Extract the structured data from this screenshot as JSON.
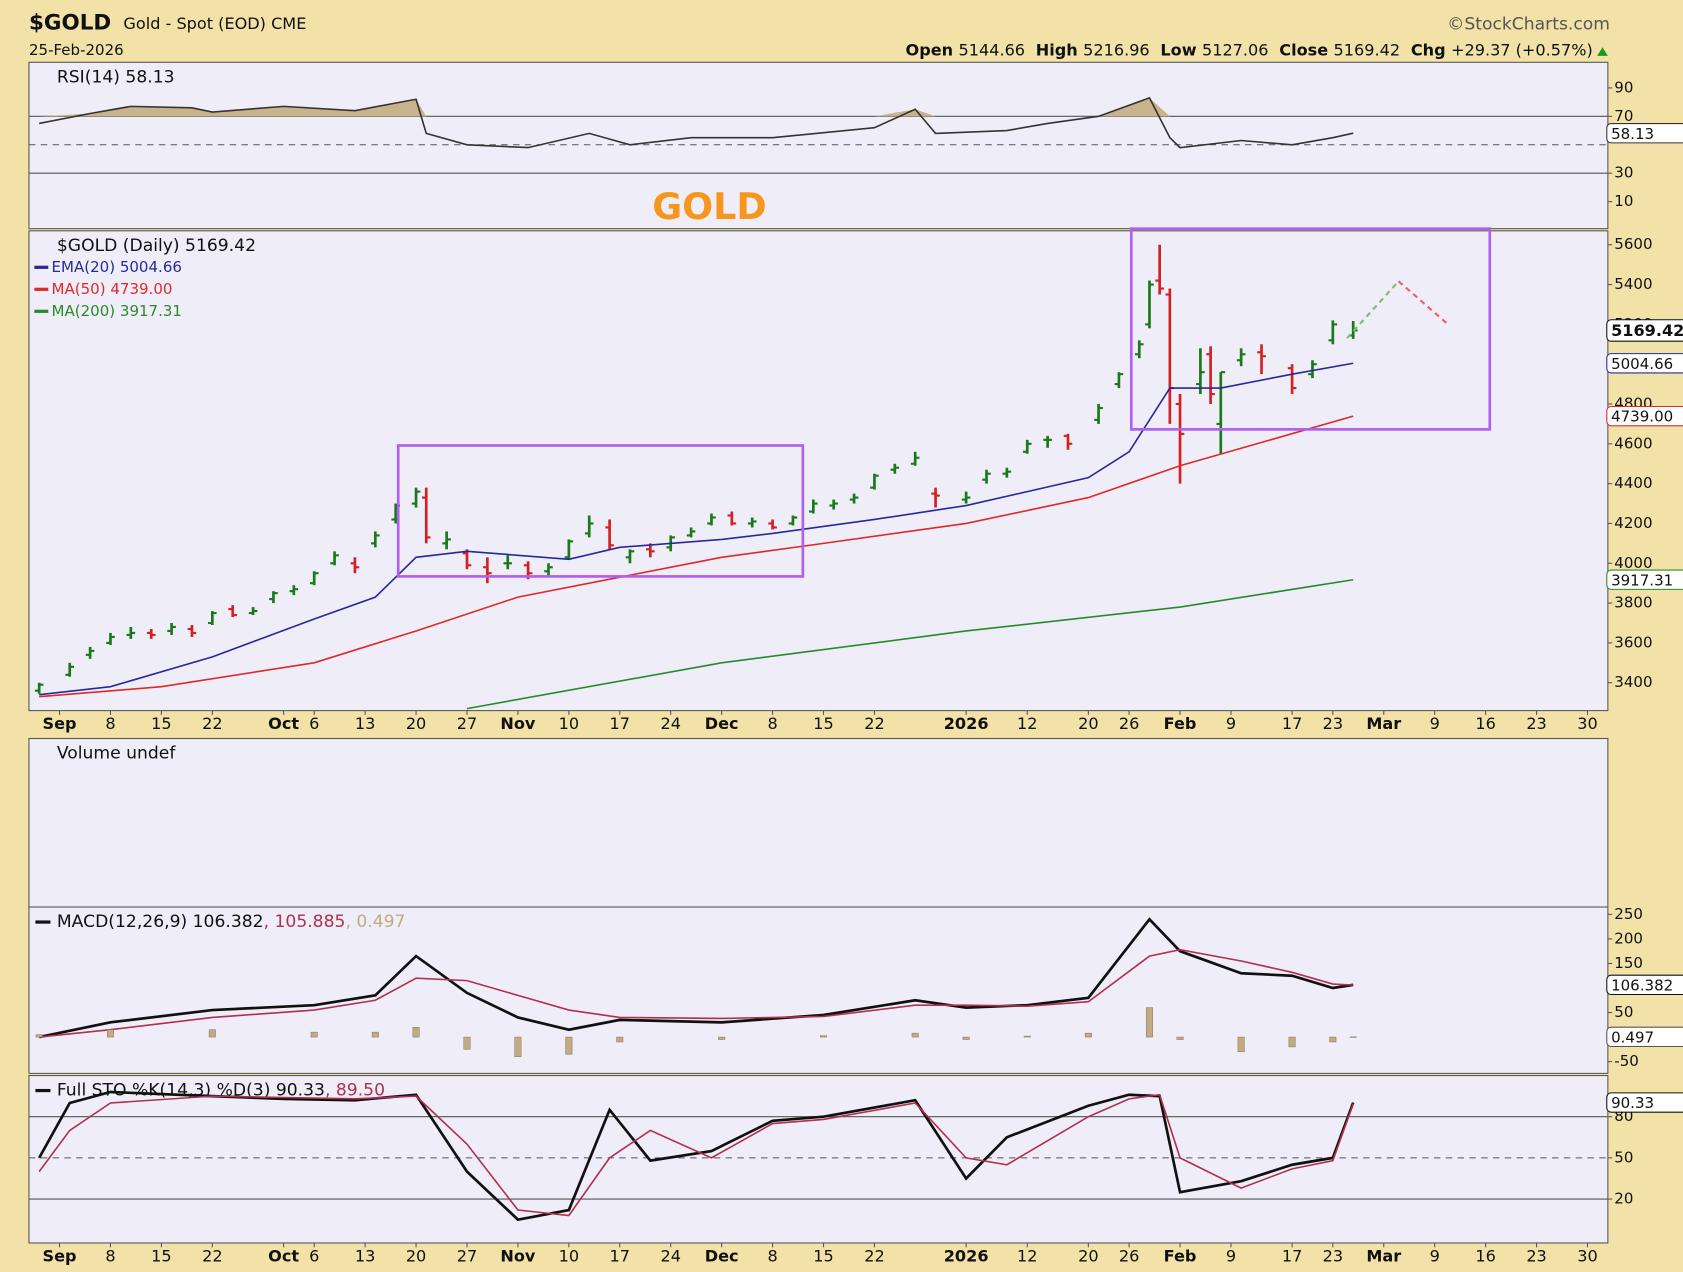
{
  "header": {
    "symbol": "$GOLD",
    "description": "Gold - Spot (EOD) CME",
    "date": "25-Feb-2026",
    "source": "©StockCharts.com",
    "quote": [
      [
        "Open",
        "5144.66"
      ],
      [
        "High",
        "5216.96"
      ],
      [
        "Low",
        "5127.06"
      ],
      [
        "Close",
        "5169.42"
      ],
      [
        "Chg",
        "+29.37 (+0.57%)"
      ]
    ]
  },
  "chart_data": [
    {
      "type": "line",
      "legend": "RSI(14) 58.13",
      "annotation": "GOLD",
      "xlim": [
        "2025-08-27",
        "2026-04-01"
      ],
      "ylim": [
        -9,
        108
      ],
      "yticks": [
        10,
        30,
        70,
        90
      ],
      "reference_lines": [
        30,
        50,
        70
      ],
      "dashed_line": 50,
      "fill_above": 70,
      "fill_color": "#c9b38c",
      "x": [
        "2025-08-28",
        "2025-09-04",
        "2025-09-10",
        "2025-09-18",
        "2025-09-22",
        "2025-10-01",
        "2025-10-10",
        "2025-10-20",
        "2025-10-21",
        "2025-10-27",
        "2025-11-04",
        "2025-11-12",
        "2025-11-18",
        "2025-11-26",
        "2025-12-08",
        "2025-12-22",
        "2025-12-26",
        "2025-12-30",
        "2026-01-08",
        "2026-01-14",
        "2026-01-21",
        "2026-01-28",
        "2026-01-30",
        "2026-02-02",
        "2026-02-10",
        "2026-02-17",
        "2026-02-23",
        "2026-02-25"
      ],
      "series": [
        {
          "color": "#333333",
          "last_label": "58.13",
          "values": [
            65,
            72,
            77,
            76,
            73,
            77,
            74,
            82,
            58,
            50,
            48,
            58,
            50,
            55,
            55,
            62,
            75,
            58,
            60,
            65,
            70,
            83,
            55,
            48,
            53,
            50,
            55,
            58.13
          ]
        }
      ]
    },
    {
      "type": "ohlc",
      "legend": "$GOLD (Daily) 5169.42",
      "close_label": "5169.42",
      "up_color": "#1a7a1a",
      "down_color": "#d42020",
      "xlim": [
        "2025-08-27",
        "2026-04-01"
      ],
      "ylim": [
        3260,
        5670
      ],
      "yticks": [
        3400,
        3600,
        3800,
        4000,
        4200,
        4400,
        4600,
        4800,
        5000,
        5200,
        5400,
        5600
      ],
      "xticks": [
        {
          "value": "2025-09-01",
          "label": "Sep"
        },
        {
          "value": "2025-09-08",
          "label": "8"
        },
        {
          "value": "2025-09-15",
          "label": "15"
        },
        {
          "value": "2025-09-22",
          "label": "22"
        },
        {
          "value": "2025-10-01",
          "label": "Oct"
        },
        {
          "value": "2025-10-06",
          "label": "6"
        },
        {
          "value": "2025-10-13",
          "label": "13"
        },
        {
          "value": "2025-10-20",
          "label": "20"
        },
        {
          "value": "2025-10-27",
          "label": "27"
        },
        {
          "value": "2025-11-03",
          "label": "Nov"
        },
        {
          "value": "2025-11-10",
          "label": "10"
        },
        {
          "value": "2025-11-17",
          "label": "17"
        },
        {
          "value": "2025-11-24",
          "label": "24"
        },
        {
          "value": "2025-12-01",
          "label": "Dec"
        },
        {
          "value": "2025-12-08",
          "label": "8"
        },
        {
          "value": "2025-12-15",
          "label": "15"
        },
        {
          "value": "2025-12-22",
          "label": "22"
        },
        {
          "value": "2026-01-02",
          "label": "2026"
        },
        {
          "value": "2026-01-12",
          "label": "12"
        },
        {
          "value": "2026-01-20",
          "label": "20"
        },
        {
          "value": "2026-01-26",
          "label": "26"
        },
        {
          "value": "2026-02-02",
          "label": "Feb"
        },
        {
          "value": "2026-02-09",
          "label": "9"
        },
        {
          "value": "2026-02-17",
          "label": "17"
        },
        {
          "value": "2026-02-23",
          "label": "23"
        },
        {
          "value": "2026-03-02",
          "label": "Mar"
        },
        {
          "value": "2026-03-09",
          "label": "9"
        },
        {
          "value": "2026-03-16",
          "label": "16"
        },
        {
          "value": "2026-03-23",
          "label": "23"
        },
        {
          "value": "2026-03-30",
          "label": "30"
        }
      ],
      "x": [
        "2025-08-28",
        "2025-09-02",
        "2025-09-04",
        "2025-09-08",
        "2025-09-10",
        "2025-09-12",
        "2025-09-16",
        "2025-09-18",
        "2025-09-22",
        "2025-09-24",
        "2025-09-26",
        "2025-09-30",
        "2025-10-02",
        "2025-10-06",
        "2025-10-08",
        "2025-10-10",
        "2025-10-14",
        "2025-10-16",
        "2025-10-20",
        "2025-10-21",
        "2025-10-23",
        "2025-10-27",
        "2025-10-29",
        "2025-10-31",
        "2025-11-04",
        "2025-11-06",
        "2025-11-10",
        "2025-11-12",
        "2025-11-14",
        "2025-11-18",
        "2025-11-20",
        "2025-11-24",
        "2025-11-26",
        "2025-11-28",
        "2025-12-02",
        "2025-12-04",
        "2025-12-08",
        "2025-12-10",
        "2025-12-12",
        "2025-12-16",
        "2025-12-18",
        "2025-12-22",
        "2025-12-24",
        "2025-12-26",
        "2025-12-30",
        "2026-01-02",
        "2026-01-06",
        "2026-01-08",
        "2026-01-12",
        "2026-01-14",
        "2026-01-16",
        "2026-01-21",
        "2026-01-23",
        "2026-01-27",
        "2026-01-28",
        "2026-01-29",
        "2026-01-30",
        "2026-02-02",
        "2026-02-04",
        "2026-02-05",
        "2026-02-06",
        "2026-02-10",
        "2026-02-12",
        "2026-02-17",
        "2026-02-19",
        "2026-02-23",
        "2026-02-25"
      ],
      "open": [
        3360,
        3440,
        3540,
        3600,
        3640,
        3650,
        3660,
        3670,
        3700,
        3770,
        3750,
        3820,
        3860,
        3900,
        4000,
        4000,
        4100,
        4220,
        4300,
        4330,
        4100,
        4050,
        3980,
        4000,
        3990,
        3960,
        4030,
        4150,
        4180,
        4030,
        4070,
        4080,
        4140,
        4200,
        4240,
        4200,
        4200,
        4200,
        4260,
        4290,
        4320,
        4380,
        4470,
        4500,
        4350,
        4320,
        4420,
        4450,
        4560,
        4620,
        4640,
        4720,
        4900,
        5050,
        5200,
        5420,
        5350,
        4800,
        4900,
        5050,
        4700,
        5020,
        5060,
        4980,
        4950,
        5120,
        5144.66
      ],
      "high": [
        3400,
        3500,
        3580,
        3650,
        3680,
        3670,
        3700,
        3690,
        3760,
        3790,
        3780,
        3860,
        3890,
        3960,
        4060,
        4030,
        4160,
        4300,
        4380,
        4380,
        4160,
        4070,
        4030,
        4040,
        4010,
        4000,
        4120,
        4240,
        4220,
        4070,
        4100,
        4140,
        4180,
        4250,
        4260,
        4230,
        4220,
        4240,
        4320,
        4320,
        4350,
        4450,
        4500,
        4560,
        4380,
        4360,
        4470,
        4480,
        4620,
        4640,
        4650,
        4800,
        4960,
        5120,
        5420,
        5600,
        5380,
        4850,
        5080,
        5090,
        4960,
        5080,
        5100,
        5000,
        5020,
        5220,
        5216.96
      ],
      "low": [
        3345,
        3430,
        3520,
        3590,
        3620,
        3620,
        3640,
        3630,
        3690,
        3730,
        3740,
        3800,
        3840,
        3890,
        3990,
        3950,
        4080,
        4200,
        4280,
        4100,
        4070,
        3970,
        3900,
        3970,
        3920,
        3940,
        4020,
        4130,
        4070,
        4000,
        4030,
        4060,
        4130,
        4190,
        4190,
        4180,
        4170,
        4190,
        4250,
        4270,
        4300,
        4370,
        4450,
        4490,
        4280,
        4300,
        4400,
        4430,
        4550,
        4580,
        4570,
        4700,
        4880,
        5030,
        5180,
        5350,
        4700,
        4400,
        4850,
        4800,
        4550,
        4990,
        4950,
        4850,
        4930,
        5100,
        5127.06
      ],
      "close": [
        3390,
        3480,
        3560,
        3630,
        3650,
        3640,
        3680,
        3650,
        3750,
        3740,
        3760,
        3850,
        3870,
        3950,
        4040,
        3980,
        4140,
        4290,
        4360,
        4130,
        4120,
        3990,
        3950,
        4000,
        3950,
        3980,
        4110,
        4200,
        4090,
        4060,
        4060,
        4130,
        4160,
        4230,
        4200,
        4210,
        4180,
        4230,
        4300,
        4300,
        4330,
        4440,
        4480,
        4530,
        4340,
        4330,
        4450,
        4460,
        4600,
        4620,
        4600,
        4780,
        4950,
        5100,
        5400,
        5380,
        4880,
        4650,
        4960,
        4850,
        4960,
        5050,
        5040,
        4880,
        5000,
        5200,
        5169.42
      ],
      "series": [
        {
          "name": "EMA(20) 5004.66",
          "color": "#28289a",
          "last_label": "5004.66",
          "x": [
            "2025-08-28",
            "2025-09-08",
            "2025-09-22",
            "2025-10-06",
            "2025-10-14",
            "2025-10-20",
            "2025-10-27",
            "2025-11-10",
            "2025-11-17",
            "2025-12-01",
            "2025-12-08",
            "2025-12-22",
            "2026-01-02",
            "2026-01-12",
            "2026-01-20",
            "2026-01-26",
            "2026-01-30",
            "2026-02-06",
            "2026-02-17",
            "2026-02-25"
          ],
          "values": [
            3340,
            3380,
            3530,
            3720,
            3830,
            4030,
            4060,
            4020,
            4080,
            4120,
            4150,
            4220,
            4290,
            4360,
            4430,
            4560,
            4880,
            4880,
            4950,
            5004.66
          ]
        },
        {
          "name": "MA(50) 4739.00",
          "color": "#e02828",
          "last_label": "4739.00",
          "x": [
            "2025-08-28",
            "2025-09-15",
            "2025-10-06",
            "2025-10-20",
            "2025-11-03",
            "2025-11-17",
            "2025-12-01",
            "2025-12-15",
            "2026-01-02",
            "2026-01-20",
            "2026-02-02",
            "2026-02-25"
          ],
          "values": [
            3330,
            3380,
            3500,
            3660,
            3830,
            3930,
            4030,
            4100,
            4200,
            4330,
            4490,
            4739.0
          ]
        },
        {
          "name": "MA(200) 3917.31",
          "color": "#2a8a2a",
          "last_label": "3917.31",
          "x": [
            "2025-10-27",
            "2025-12-01",
            "2026-01-02",
            "2026-02-02",
            "2026-02-25"
          ],
          "values": [
            3270,
            3500,
            3660,
            3780,
            3917.31
          ]
        }
      ]
    },
    {
      "type": "bar",
      "legend": "Volume undef"
    },
    {
      "type": "line",
      "xlim": [
        "2025-08-27",
        "2026-04-01"
      ],
      "ylim": [
        -74,
        265
      ],
      "yticks": [
        -50,
        50,
        150,
        200,
        250
      ],
      "legend_inline": true,
      "x": [
        "2025-08-28",
        "2025-09-08",
        "2025-09-22",
        "2025-10-06",
        "2025-10-14",
        "2025-10-20",
        "2025-10-27",
        "2025-11-03",
        "2025-11-10",
        "2025-11-17",
        "2025-12-01",
        "2025-12-15",
        "2025-12-26",
        "2026-01-02",
        "2026-01-12",
        "2026-01-20",
        "2026-01-28",
        "2026-02-02",
        "2026-02-10",
        "2026-02-17",
        "2026-02-23",
        "2026-02-25"
      ],
      "series": [
        {
          "name": "MACD(12,26,9) 106.382",
          "color": "#111111",
          "last_label": "106.382",
          "values": [
            0,
            30,
            55,
            65,
            85,
            165,
            90,
            40,
            15,
            35,
            30,
            45,
            75,
            60,
            65,
            80,
            240,
            175,
            130,
            125,
            100,
            106.382
          ]
        },
        {
          "name": ", 105.885",
          "color": "#b03050",
          "values": [
            0,
            15,
            40,
            55,
            75,
            120,
            115,
            85,
            55,
            40,
            38,
            42,
            65,
            65,
            63,
            72,
            165,
            178,
            155,
            132,
            108,
            105.885
          ]
        },
        {
          "name": ", 0.497",
          "color": "#c2aa82",
          "type": "bar",
          "last_label": "0.497",
          "values": [
            5,
            15,
            15,
            10,
            10,
            20,
            -25,
            -40,
            -35,
            -10,
            -5,
            3,
            8,
            -5,
            2,
            8,
            60,
            -5,
            -30,
            -20,
            -10,
            0.497
          ]
        }
      ]
    },
    {
      "type": "line",
      "xlim": [
        "2025-08-27",
        "2026-04-01"
      ],
      "ylim": [
        -12,
        110
      ],
      "yticks": [
        20,
        50,
        80
      ],
      "legend_inline": true,
      "reference_lines": [
        20,
        50,
        80
      ],
      "dashed_line": 50,
      "xticks": [
        {
          "value": "2025-09-01",
          "label": "Sep"
        },
        {
          "value": "2025-09-08",
          "label": "8"
        },
        {
          "value": "2025-09-15",
          "label": "15"
        },
        {
          "value": "2025-09-22",
          "label": "22"
        },
        {
          "value": "2025-10-01",
          "label": "Oct"
        },
        {
          "value": "2025-10-06",
          "label": "6"
        },
        {
          "value": "2025-10-13",
          "label": "13"
        },
        {
          "value": "2025-10-20",
          "label": "20"
        },
        {
          "value": "2025-10-27",
          "label": "27"
        },
        {
          "value": "2025-11-03",
          "label": "Nov"
        },
        {
          "value": "2025-11-10",
          "label": "10"
        },
        {
          "value": "2025-11-17",
          "label": "17"
        },
        {
          "value": "2025-11-24",
          "label": "24"
        },
        {
          "value": "2025-12-01",
          "label": "Dec"
        },
        {
          "value": "2025-12-08",
          "label": "8"
        },
        {
          "value": "2025-12-15",
          "label": "15"
        },
        {
          "value": "2025-12-22",
          "label": "22"
        },
        {
          "value": "2026-01-02",
          "label": "2026"
        },
        {
          "value": "2026-01-12",
          "label": "12"
        },
        {
          "value": "2026-01-20",
          "label": "20"
        },
        {
          "value": "2026-01-26",
          "label": "26"
        },
        {
          "value": "2026-02-02",
          "label": "Feb"
        },
        {
          "value": "2026-02-09",
          "label": "9"
        },
        {
          "value": "2026-02-17",
          "label": "17"
        },
        {
          "value": "2026-02-23",
          "label": "23"
        },
        {
          "value": "2026-03-02",
          "label": "Mar"
        },
        {
          "value": "2026-03-09",
          "label": "9"
        },
        {
          "value": "2026-03-16",
          "label": "16"
        },
        {
          "value": "2026-03-23",
          "label": "23"
        },
        {
          "value": "2026-03-30",
          "label": "30"
        }
      ],
      "x": [
        "2025-08-28",
        "2025-09-02",
        "2025-09-08",
        "2025-09-22",
        "2025-10-01",
        "2025-10-10",
        "2025-10-20",
        "2025-10-27",
        "2025-11-03",
        "2025-11-10",
        "2025-11-14",
        "2025-11-20",
        "2025-11-28",
        "2025-12-08",
        "2025-12-15",
        "2025-12-26",
        "2026-01-02",
        "2026-01-08",
        "2026-01-20",
        "2026-01-26",
        "2026-01-29",
        "2026-02-02",
        "2026-02-10",
        "2026-02-17",
        "2026-02-23",
        "2026-02-25"
      ],
      "series": [
        {
          "name": "Full STO %K(14,3) %D(3) 90.33",
          "color": "#111111",
          "last_label": "90.33",
          "values": [
            50,
            90,
            98,
            95,
            93,
            92,
            96,
            40,
            5,
            12,
            85,
            48,
            55,
            77,
            80,
            92,
            35,
            65,
            88,
            96,
            95,
            25,
            33,
            45,
            50,
            90.33
          ]
        },
        {
          "name": ", 89.50",
          "color": "#b03050",
          "values": [
            40,
            70,
            90,
            95,
            94,
            93,
            95,
            60,
            12,
            8,
            50,
            70,
            50,
            75,
            78,
            90,
            50,
            45,
            80,
            93,
            96,
            50,
            28,
            42,
            48,
            89.5
          ]
        }
      ]
    }
  ]
}
